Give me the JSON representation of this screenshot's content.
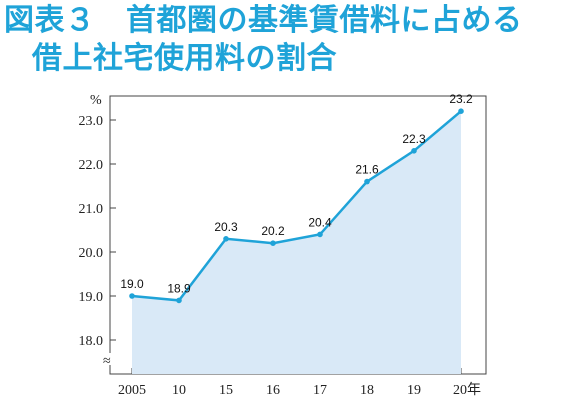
{
  "title": {
    "line1": "図表３　首都圏の基準賃借料に占める",
    "line2": "借上社宅使用料の割合"
  },
  "chart_data": {
    "type": "area",
    "categories": [
      "2005",
      "10",
      "15",
      "16",
      "17",
      "18",
      "19",
      "20年"
    ],
    "values": [
      19.0,
      18.9,
      20.3,
      20.2,
      20.4,
      21.6,
      22.3,
      23.2
    ],
    "data_labels": [
      "19.0",
      "18.9",
      "20.3",
      "20.2",
      "20.4",
      "21.6",
      "22.3",
      "23.2"
    ],
    "y_unit": "%",
    "y_ticks": [
      "18.0",
      "19.0",
      "20.0",
      "21.0",
      "22.0",
      "23.0"
    ],
    "ylim": [
      17.5,
      23.4
    ],
    "axis_break_symbol": "≈",
    "grid": false,
    "colors": {
      "line": "#1fa3d8",
      "fill": "#d9e9f7",
      "title": "#1fa3d8"
    }
  }
}
